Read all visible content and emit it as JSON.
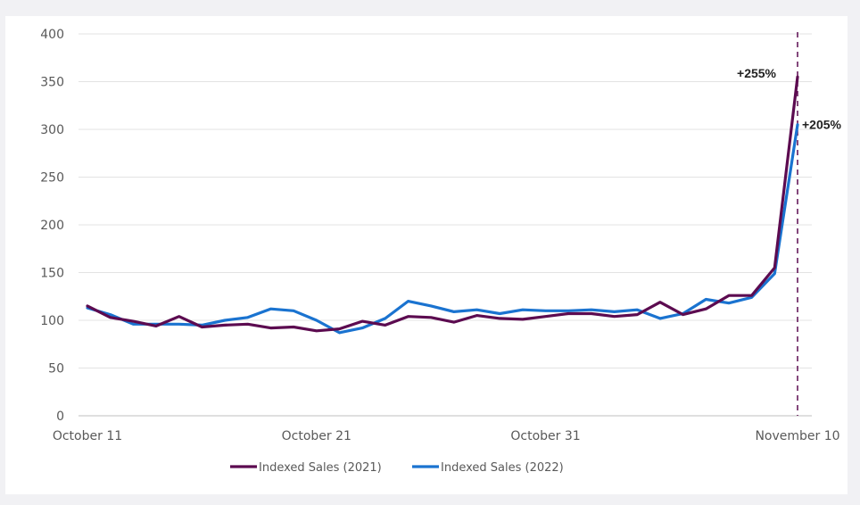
{
  "chart_data": {
    "type": "line",
    "title": "",
    "xlabel": "",
    "ylabel": "",
    "ylim": [
      0,
      400
    ],
    "yticks": [
      "0",
      "50",
      "100",
      "150",
      "200",
      "250",
      "300",
      "350",
      "400"
    ],
    "xticks": [
      {
        "label": "October 11",
        "index": 0
      },
      {
        "label": "October 21",
        "index": 10
      },
      {
        "label": "October 31",
        "index": 20
      },
      {
        "label": "November 10",
        "index": 31
      }
    ],
    "grid": true,
    "legend": "bottom",
    "series": [
      {
        "name": "Indexed Sales (2021)",
        "color": "#5c0b50",
        "values": [
          115,
          103,
          99,
          94,
          104,
          93,
          95,
          96,
          92,
          93,
          89,
          91,
          99,
          95,
          104,
          103,
          98,
          105,
          102,
          101,
          104,
          107,
          107,
          104,
          106,
          119,
          106,
          112,
          126,
          126,
          155,
          355
        ]
      },
      {
        "name": "Indexed Sales (2022)",
        "color": "#1a73d0",
        "values": [
          113,
          106,
          96,
          96,
          96,
          95,
          100,
          103,
          112,
          110,
          100,
          87,
          92,
          102,
          120,
          115,
          109,
          111,
          107,
          111,
          110,
          110,
          111,
          109,
          111,
          102,
          107,
          122,
          118,
          124,
          149,
          305
        ]
      }
    ],
    "annotations": [
      {
        "text": "+255%",
        "series": 0
      },
      {
        "text": "+205%",
        "series": 1
      }
    ],
    "reference_line": {
      "index": 31,
      "style": "dashed",
      "color": "#5c0b50"
    }
  }
}
